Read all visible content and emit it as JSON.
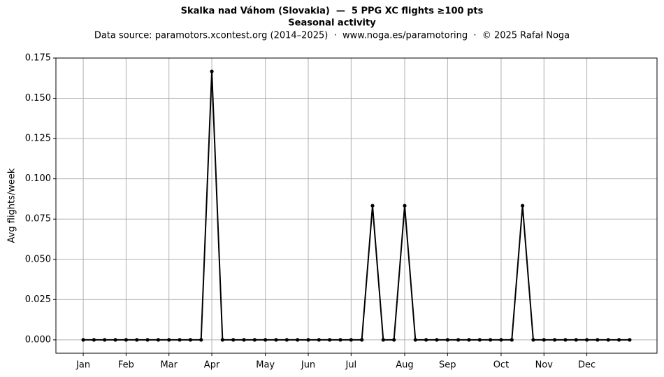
{
  "chart_data": {
    "type": "line",
    "title": "Skalka nad Váhom (Slovakia)  —  5 PPG XC flights ≥100 pts",
    "subtitle": "Seasonal activity",
    "source": "Data source: paramotors.xcontest.org (2014–2025)  ·  www.noga.es/paramotoring  ·  © 2025 Rafał Noga",
    "y_label": "Avg flights/week",
    "x": [
      1,
      2,
      3,
      4,
      5,
      6,
      7,
      8,
      9,
      10,
      11,
      12,
      13,
      14,
      15,
      16,
      17,
      18,
      19,
      20,
      21,
      22,
      23,
      24,
      25,
      26,
      27,
      28,
      29,
      30,
      31,
      32,
      33,
      34,
      35,
      36,
      37,
      38,
      39,
      40,
      41,
      42,
      43,
      44,
      45,
      46,
      47,
      48,
      49,
      50,
      51,
      52
    ],
    "values": [
      0,
      0,
      0,
      0,
      0,
      0,
      0,
      0,
      0,
      0,
      0,
      0,
      0.1667,
      0,
      0,
      0,
      0,
      0,
      0,
      0,
      0,
      0,
      0,
      0,
      0,
      0,
      0,
      0.0833,
      0,
      0,
      0.0833,
      0,
      0,
      0,
      0,
      0,
      0,
      0,
      0,
      0,
      0,
      0.0833,
      0,
      0,
      0,
      0,
      0,
      0,
      0,
      0,
      0,
      0
    ],
    "color": "#000000",
    "xlim": [
      -1.55,
      54.55
    ],
    "xticks": [
      {
        "value": 1,
        "label": "Jan"
      },
      {
        "value": 5,
        "label": "Feb"
      },
      {
        "value": 9,
        "label": "Mar"
      },
      {
        "value": 13,
        "label": "Apr"
      },
      {
        "value": 18,
        "label": "May"
      },
      {
        "value": 22,
        "label": "Jun"
      },
      {
        "value": 26,
        "label": "Jul"
      },
      {
        "value": 31,
        "label": "Aug"
      },
      {
        "value": 35,
        "label": "Sep"
      },
      {
        "value": 40,
        "label": "Oct"
      },
      {
        "value": 44,
        "label": "Nov"
      },
      {
        "value": 48,
        "label": "Dec"
      }
    ],
    "ylim": [
      -0.0083,
      0.175
    ],
    "yticks": [
      {
        "value": 0,
        "label": "0.000"
      },
      {
        "value": 0.025,
        "label": "0.025"
      },
      {
        "value": 0.05,
        "label": "0.050"
      },
      {
        "value": 0.075,
        "label": "0.075"
      },
      {
        "value": 0.1,
        "label": "0.100"
      },
      {
        "value": 0.125,
        "label": "0.125"
      },
      {
        "value": 0.15,
        "label": "0.150"
      },
      {
        "value": 0.175,
        "label": "0.175"
      }
    ],
    "grid": true
  }
}
